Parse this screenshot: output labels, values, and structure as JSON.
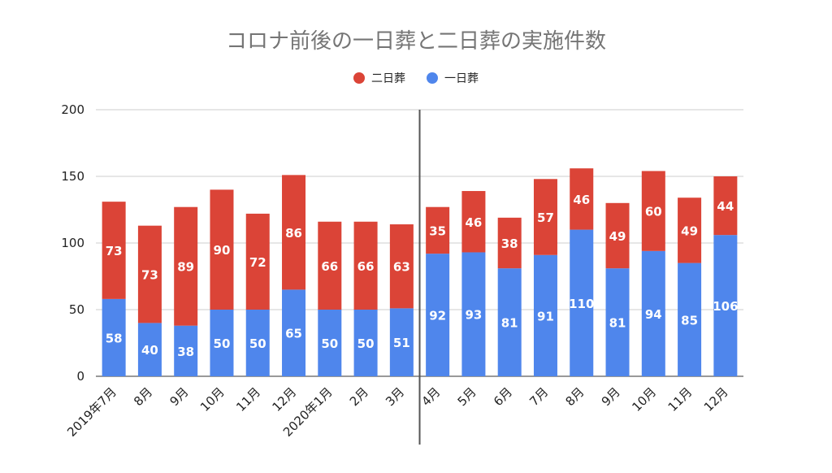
{
  "chart_data": {
    "type": "bar",
    "stacked": true,
    "title": "コロナ前後の一日葬と二日葬の実施件数",
    "categories": [
      "2019年7月",
      "8月",
      "9月",
      "10月",
      "11月",
      "12月",
      "2020年1月",
      "2月",
      "3月",
      "4月",
      "5月",
      "6月",
      "7月",
      "8月",
      "9月",
      "10月",
      "11月",
      "12月"
    ],
    "series": [
      {
        "name": "一日葬",
        "color": "#4f86ec",
        "values": [
          58,
          40,
          38,
          50,
          50,
          65,
          50,
          50,
          51,
          92,
          93,
          81,
          91,
          110,
          81,
          94,
          85,
          106
        ]
      },
      {
        "name": "二日葬",
        "color": "#db4437",
        "values": [
          73,
          73,
          89,
          90,
          72,
          86,
          66,
          66,
          63,
          35,
          46,
          38,
          57,
          46,
          49,
          60,
          49,
          44
        ]
      }
    ],
    "legend_order": [
      "二日葬",
      "一日葬"
    ],
    "legend_position": "top",
    "ylim": [
      0,
      200
    ],
    "yticks": [
      0,
      50,
      100,
      150,
      200
    ],
    "grid": true,
    "divider_after_category_index": 8
  }
}
